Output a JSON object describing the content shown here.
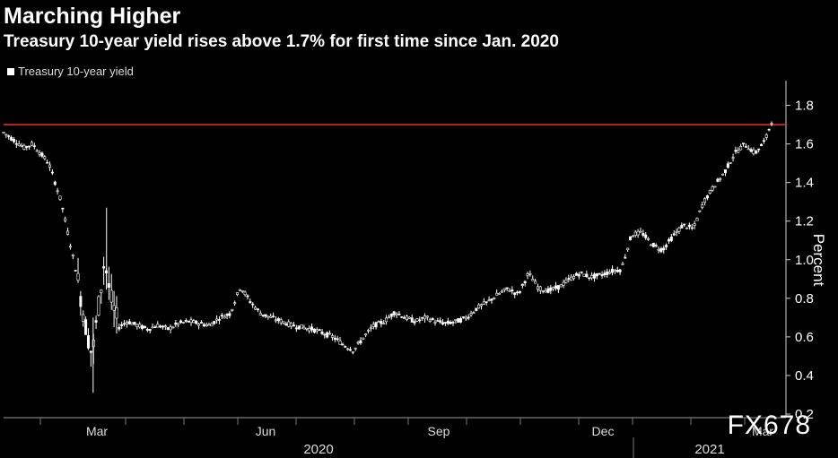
{
  "chart_data": {
    "type": "candlestick",
    "title": "Marching Higher",
    "subtitle": "Treasury 10-year yield rises above 1.7% for first time since Jan. 2020",
    "legend": [
      {
        "name": "Treasury 10-year yield",
        "color": "#ffffff"
      }
    ],
    "ylabel": "Percent",
    "ylim": [
      0.2,
      1.9
    ],
    "yticks": [
      "0.2",
      "0.4",
      "0.6",
      "0.8",
      "1.0",
      "1.2",
      "1.4",
      "1.6",
      "1.8"
    ],
    "xticks": [
      "Mar",
      "Jun",
      "Sep",
      "Dec",
      "Mar"
    ],
    "year_labels": [
      "2020",
      "2021"
    ],
    "reference_line": {
      "value": 1.7,
      "color": "#e8241f"
    },
    "series_points": [
      {
        "t": 0,
        "v": 1.66
      },
      {
        "t": 0.5,
        "v": 1.62
      },
      {
        "t": 1,
        "v": 1.58
      },
      {
        "t": 1.4,
        "v": 1.6
      },
      {
        "t": 1.8,
        "v": 1.55
      },
      {
        "t": 2.2,
        "v": 1.5
      },
      {
        "t": 2.8,
        "v": 1.3
      },
      {
        "t": 3.2,
        "v": 1.1
      },
      {
        "t": 3.6,
        "v": 0.9
      },
      {
        "t": 4.0,
        "v": 0.65
      },
      {
        "t": 4.3,
        "v": 0.5
      },
      {
        "t": 4.6,
        "v": 0.75
      },
      {
        "t": 4.9,
        "v": 1.0
      },
      {
        "t": 5.2,
        "v": 0.8
      },
      {
        "t": 5.6,
        "v": 0.65
      },
      {
        "t": 6.0,
        "v": 0.68
      },
      {
        "t": 6.5,
        "v": 0.66
      },
      {
        "t": 7.0,
        "v": 0.64
      },
      {
        "t": 7.5,
        "v": 0.66
      },
      {
        "t": 8.0,
        "v": 0.64
      },
      {
        "t": 8.5,
        "v": 0.67
      },
      {
        "t": 9.0,
        "v": 0.68
      },
      {
        "t": 9.5,
        "v": 0.67
      },
      {
        "t": 10.0,
        "v": 0.66
      },
      {
        "t": 10.5,
        "v": 0.7
      },
      {
        "t": 11.0,
        "v": 0.72
      },
      {
        "t": 11.5,
        "v": 0.86
      },
      {
        "t": 12.0,
        "v": 0.78
      },
      {
        "t": 12.5,
        "v": 0.72
      },
      {
        "t": 13.0,
        "v": 0.7
      },
      {
        "t": 13.5,
        "v": 0.68
      },
      {
        "t": 14.0,
        "v": 0.66
      },
      {
        "t": 14.5,
        "v": 0.65
      },
      {
        "t": 15.0,
        "v": 0.64
      },
      {
        "t": 15.5,
        "v": 0.62
      },
      {
        "t": 16.0,
        "v": 0.6
      },
      {
        "t": 16.5,
        "v": 0.56
      },
      {
        "t": 17.0,
        "v": 0.53
      },
      {
        "t": 17.5,
        "v": 0.6
      },
      {
        "t": 18.0,
        "v": 0.66
      },
      {
        "t": 18.5,
        "v": 0.68
      },
      {
        "t": 19.0,
        "v": 0.73
      },
      {
        "t": 19.5,
        "v": 0.7
      },
      {
        "t": 20.0,
        "v": 0.68
      },
      {
        "t": 20.5,
        "v": 0.7
      },
      {
        "t": 21.0,
        "v": 0.68
      },
      {
        "t": 21.5,
        "v": 0.67
      },
      {
        "t": 22.0,
        "v": 0.68
      },
      {
        "t": 22.5,
        "v": 0.7
      },
      {
        "t": 23.0,
        "v": 0.75
      },
      {
        "t": 23.5,
        "v": 0.78
      },
      {
        "t": 24.0,
        "v": 0.82
      },
      {
        "t": 24.5,
        "v": 0.85
      },
      {
        "t": 25.0,
        "v": 0.82
      },
      {
        "t": 25.5,
        "v": 0.93
      },
      {
        "t": 26.0,
        "v": 0.85
      },
      {
        "t": 26.5,
        "v": 0.84
      },
      {
        "t": 27.0,
        "v": 0.86
      },
      {
        "t": 27.5,
        "v": 0.9
      },
      {
        "t": 28.0,
        "v": 0.93
      },
      {
        "t": 28.5,
        "v": 0.91
      },
      {
        "t": 29.0,
        "v": 0.92
      },
      {
        "t": 29.5,
        "v": 0.94
      },
      {
        "t": 30.0,
        "v": 0.95
      },
      {
        "t": 30.5,
        "v": 1.13
      },
      {
        "t": 31.0,
        "v": 1.14
      },
      {
        "t": 31.5,
        "v": 1.08
      },
      {
        "t": 32.0,
        "v": 1.05
      },
      {
        "t": 32.5,
        "v": 1.12
      },
      {
        "t": 33.0,
        "v": 1.18
      },
      {
        "t": 33.5,
        "v": 1.16
      },
      {
        "t": 34.0,
        "v": 1.3
      },
      {
        "t": 34.5,
        "v": 1.38
      },
      {
        "t": 35.0,
        "v": 1.45
      },
      {
        "t": 35.5,
        "v": 1.55
      },
      {
        "t": 36.0,
        "v": 1.6
      },
      {
        "t": 36.5,
        "v": 1.55
      },
      {
        "t": 37.0,
        "v": 1.62
      },
      {
        "t": 37.3,
        "v": 1.72
      }
    ],
    "t_range": [
      0,
      37.3
    ]
  },
  "watermark": "FX678"
}
